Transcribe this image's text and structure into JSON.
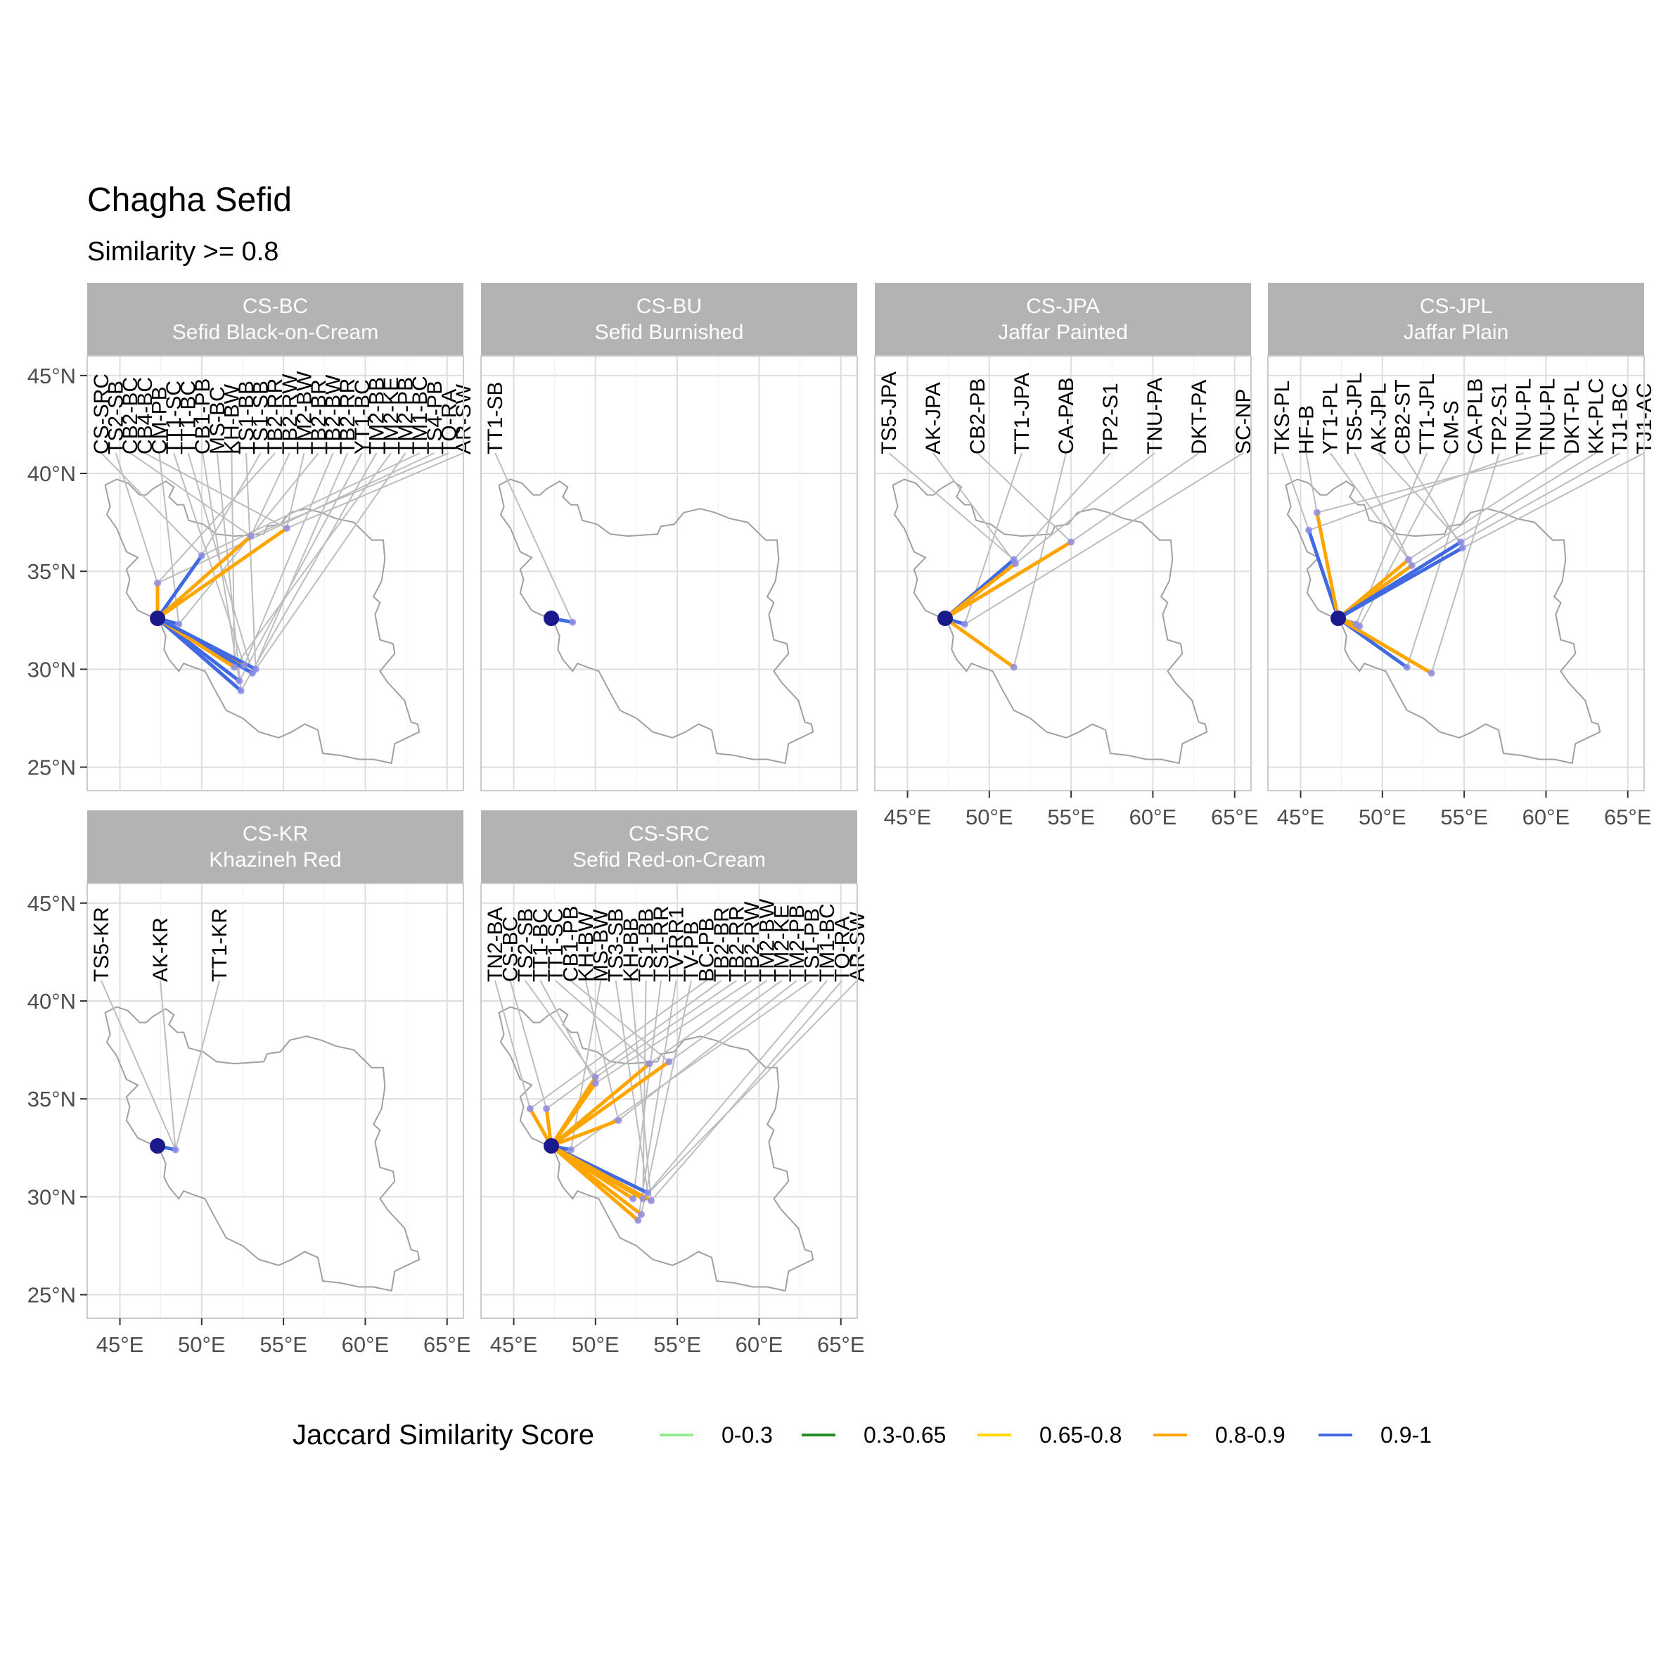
{
  "chart_data": {
    "type": "faceted-map",
    "title": "Chagha Sefid",
    "subtitle": "Similarity >= 0.8",
    "x_ticks": [
      "45°E",
      "50°E",
      "55°E",
      "60°E",
      "65°E"
    ],
    "y_ticks": [
      "45°N",
      "40°N",
      "35°N",
      "30°N",
      "25°N"
    ],
    "xlim": [
      43,
      66
    ],
    "ylim": [
      23.8,
      46
    ],
    "origin": {
      "lon": 47.3,
      "lat": 32.6
    },
    "legend": {
      "title": "Jaccard Similarity Score",
      "entries": [
        {
          "label": "0-0.3",
          "color": "#90EE90"
        },
        {
          "label": "0.3-0.65",
          "color": "#228B22"
        },
        {
          "label": "0.65-0.8",
          "color": "#FFD700"
        },
        {
          "label": "0.8-0.9",
          "color": "#FFA500"
        },
        {
          "label": "0.9-1",
          "color": "#4169E1"
        }
      ]
    },
    "facets": [
      {
        "code": "CS-BC",
        "name": "Sefid Black-on-Cream",
        "labels": [
          "CS-SRC",
          "TS2-SB",
          "CB2-BC",
          "CB4-BC",
          "CM-PB",
          "TT1-SC",
          "TT1-BC",
          "CB1-PB",
          "MS-BC",
          "KH-BW",
          "TS1-BB",
          "TS1-SB",
          "TB2-RR",
          "TB2-RW",
          "TM2-BW",
          "TB2-BR",
          "TB2-BW",
          "TB2-RR",
          "YT1-BC",
          "TM2-BB",
          "TM2-KE",
          "TM2-PB",
          "TM1-BC",
          "TS4-PB",
          "TQ-RA",
          "AR-SW"
        ],
        "links": [
          {
            "lon": 50.0,
            "lat": 35.8,
            "bin": "0.9-1"
          },
          {
            "lon": 47.3,
            "lat": 34.4,
            "bin": "0.8-0.9"
          },
          {
            "lon": 53.0,
            "lat": 36.8,
            "bin": "0.8-0.9"
          },
          {
            "lon": 55.2,
            "lat": 37.2,
            "bin": "0.8-0.9"
          },
          {
            "lon": 48.6,
            "lat": 32.3,
            "bin": "0.9-1"
          },
          {
            "lon": 52.6,
            "lat": 30.2,
            "bin": "0.8-0.9"
          },
          {
            "lon": 53.1,
            "lat": 29.8,
            "bin": "0.9-1"
          },
          {
            "lon": 52.3,
            "lat": 29.4,
            "bin": "0.9-1"
          },
          {
            "lon": 52.4,
            "lat": 28.9,
            "bin": "0.9-1"
          },
          {
            "lon": 52.0,
            "lat": 30.1,
            "bin": "0.8-0.9"
          },
          {
            "lon": 53.3,
            "lat": 30.0,
            "bin": "0.9-1"
          }
        ]
      },
      {
        "code": "CS-BU",
        "name": "Sefid Burnished",
        "labels": [
          "TT1-SB"
        ],
        "links": [
          {
            "lon": 48.6,
            "lat": 32.4,
            "bin": "0.9-1"
          }
        ]
      },
      {
        "code": "CS-JPA",
        "name": "Jaffar Painted",
        "labels": [
          "TS5-JPA",
          "AK-JPA",
          "CB2-PB",
          "TT1-JPA",
          "CA-PAB",
          "TP2-S1",
          "TNU-PA",
          "DKT-PA",
          "SC-NP"
        ],
        "links": [
          {
            "lon": 51.5,
            "lat": 35.6,
            "bin": "0.9-1"
          },
          {
            "lon": 51.6,
            "lat": 35.4,
            "bin": "0.8-0.9"
          },
          {
            "lon": 55.0,
            "lat": 36.5,
            "bin": "0.8-0.9"
          },
          {
            "lon": 48.5,
            "lat": 32.3,
            "bin": "0.9-1"
          },
          {
            "lon": 51.5,
            "lat": 30.1,
            "bin": "0.8-0.9"
          }
        ]
      },
      {
        "code": "CS-JPL",
        "name": "Jaffar Plain",
        "labels": [
          "TKS-PL",
          "HF-B",
          "YT1-PL",
          "TS5-JPL",
          "AK-JPL",
          "CB2-ST",
          "TT1-JPL",
          "CM-S",
          "CA-PLB",
          "TP2-S1",
          "TNU-PL",
          "TNU-PL",
          "DKT-PL",
          "KK-PLC",
          "TJ1-BC",
          "TJ1-AC"
        ],
        "links": [
          {
            "lon": 45.5,
            "lat": 37.1,
            "bin": "0.9-1"
          },
          {
            "lon": 46.0,
            "lat": 38.0,
            "bin": "0.8-0.9"
          },
          {
            "lon": 51.6,
            "lat": 35.6,
            "bin": "0.8-0.9"
          },
          {
            "lon": 51.8,
            "lat": 35.3,
            "bin": "0.8-0.9"
          },
          {
            "lon": 54.8,
            "lat": 36.5,
            "bin": "0.9-1"
          },
          {
            "lon": 54.9,
            "lat": 36.2,
            "bin": "0.9-1"
          },
          {
            "lon": 48.4,
            "lat": 32.3,
            "bin": "0.9-1"
          },
          {
            "lon": 48.6,
            "lat": 32.2,
            "bin": "0.8-0.9"
          },
          {
            "lon": 51.5,
            "lat": 30.1,
            "bin": "0.9-1"
          },
          {
            "lon": 53.0,
            "lat": 29.8,
            "bin": "0.8-0.9"
          }
        ]
      },
      {
        "code": "CS-KR",
        "name": "Khazineh Red",
        "labels": [
          "TS5-KR",
          "AK-KR",
          "TT1-KR"
        ],
        "links": [
          {
            "lon": 48.4,
            "lat": 32.4,
            "bin": "0.9-1"
          }
        ]
      },
      {
        "code": "CS-SRC",
        "name": "Sefid Red-on-Cream",
        "labels": [
          "TN2-BA",
          "CS-BC",
          "TS2-SB",
          "TT1-BC",
          "TT1-SC",
          "CB1-PB",
          "KH-BW",
          "MS-BW",
          "TS3-SB",
          "KH-BB",
          "TS1-BB",
          "TS1-RR",
          "TV-RR1",
          "TV-PB",
          "BC-PB",
          "TB2-BR",
          "TB2-RR",
          "TB2-RW",
          "TM2-BW",
          "TM2-KE",
          "TM2-PB",
          "TS1-PB",
          "TM1-BC",
          "TQ-RA",
          "AR-SW"
        ],
        "links": [
          {
            "lon": 46.0,
            "lat": 34.5,
            "bin": "0.8-0.9"
          },
          {
            "lon": 47.0,
            "lat": 34.5,
            "bin": "0.8-0.9"
          },
          {
            "lon": 50.0,
            "lat": 36.1,
            "bin": "0.8-0.9"
          },
          {
            "lon": 50.0,
            "lat": 35.8,
            "bin": "0.8-0.9"
          },
          {
            "lon": 53.3,
            "lat": 36.8,
            "bin": "0.8-0.9"
          },
          {
            "lon": 54.5,
            "lat": 36.9,
            "bin": "0.8-0.9"
          },
          {
            "lon": 51.4,
            "lat": 33.9,
            "bin": "0.8-0.9"
          },
          {
            "lon": 48.5,
            "lat": 32.4,
            "bin": "0.9-1"
          },
          {
            "lon": 53.2,
            "lat": 30.2,
            "bin": "0.9-1"
          },
          {
            "lon": 53.4,
            "lat": 29.8,
            "bin": "0.8-0.9"
          },
          {
            "lon": 52.9,
            "lat": 29.9,
            "bin": "0.8-0.9"
          },
          {
            "lon": 52.3,
            "lat": 29.9,
            "bin": "0.8-0.9"
          },
          {
            "lon": 52.6,
            "lat": 28.8,
            "bin": "0.8-0.9"
          },
          {
            "lon": 52.8,
            "lat": 29.1,
            "bin": "0.8-0.9"
          }
        ]
      }
    ]
  }
}
